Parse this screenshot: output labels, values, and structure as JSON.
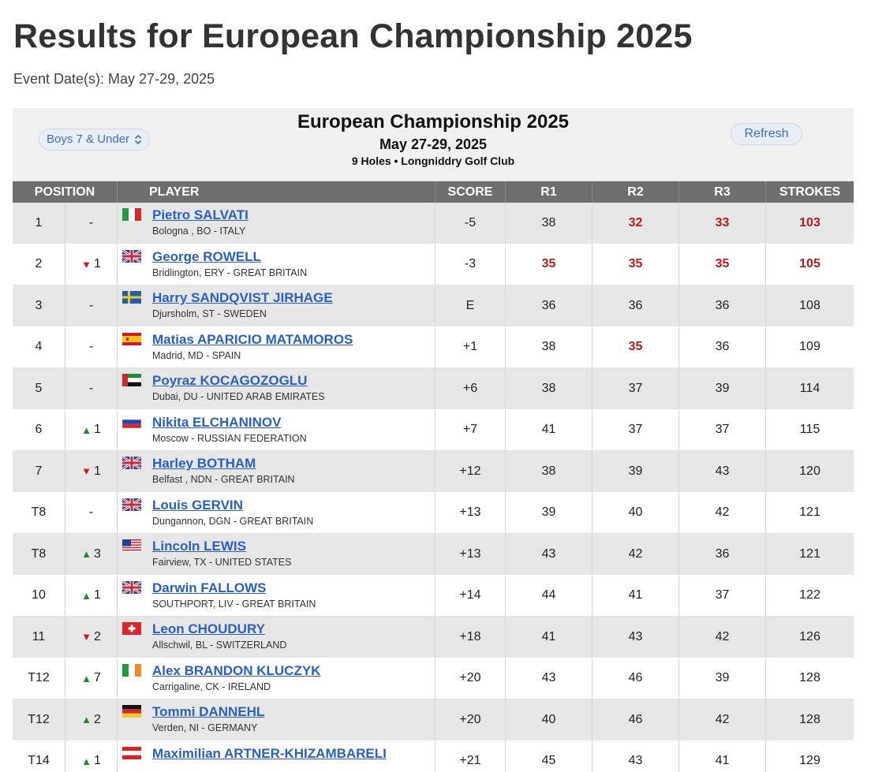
{
  "page": {
    "title": "Results for European Championship 2025",
    "event_date": "Event Date(s): May 27-29, 2025"
  },
  "board": {
    "division": "Boys 7 & Under",
    "refresh_label": "Refresh",
    "title": "European Championship 2025",
    "dates": "May 27-29, 2025",
    "course": "9 Holes • Longniddry Golf Club"
  },
  "columns": {
    "position": "POSITION",
    "player": "PLAYER",
    "score": "SCORE",
    "r1": "R1",
    "r2": "R2",
    "r3": "R3",
    "strokes": "STROKES"
  },
  "rows": [
    {
      "pos": "1",
      "move_dir": "none",
      "move": "-",
      "flag": "italy",
      "name": "Pietro SALVATI",
      "loc": "Bologna , BO - ITALY",
      "score": "-5",
      "r1": "38",
      "r2": "32",
      "r3": "33",
      "strokes": "103",
      "red": [
        "r2",
        "r3",
        "strokes"
      ]
    },
    {
      "pos": "2",
      "move_dir": "down",
      "move": "1",
      "flag": "great-britain",
      "name": "George ROWELL",
      "loc": "Bridlington, ERY - GREAT BRITAIN",
      "score": "-3",
      "r1": "35",
      "r2": "35",
      "r3": "35",
      "strokes": "105",
      "red": [
        "r1",
        "r2",
        "r3",
        "strokes"
      ]
    },
    {
      "pos": "3",
      "move_dir": "none",
      "move": "-",
      "flag": "sweden",
      "name": "Harry SANDQVIST JIRHAGE",
      "loc": "Djursholm, ST - SWEDEN",
      "score": "E",
      "r1": "36",
      "r2": "36",
      "r3": "36",
      "strokes": "108",
      "red": []
    },
    {
      "pos": "4",
      "move_dir": "none",
      "move": "-",
      "flag": "spain",
      "name": "Matias APARICIO MATAMOROS",
      "loc": "Madrid, MD - SPAIN",
      "score": "+1",
      "r1": "38",
      "r2": "35",
      "r3": "36",
      "strokes": "109",
      "red": [
        "r2"
      ]
    },
    {
      "pos": "5",
      "move_dir": "none",
      "move": "-",
      "flag": "uae",
      "name": "Poyraz KOCAGOZOGLU",
      "loc": "Dubai, DU - UNITED ARAB EMIRATES",
      "score": "+6",
      "r1": "38",
      "r2": "37",
      "r3": "39",
      "strokes": "114",
      "red": []
    },
    {
      "pos": "6",
      "move_dir": "up",
      "move": "1",
      "flag": "russia",
      "name": "Nikita ELCHANINOV",
      "loc": "Moscow - RUSSIAN FEDERATION",
      "score": "+7",
      "r1": "41",
      "r2": "37",
      "r3": "37",
      "strokes": "115",
      "red": []
    },
    {
      "pos": "7",
      "move_dir": "down",
      "move": "1",
      "flag": "great-britain",
      "name": "Harley BOTHAM",
      "loc": "Belfast , NDN - GREAT BRITAIN",
      "score": "+12",
      "r1": "38",
      "r2": "39",
      "r3": "43",
      "strokes": "120",
      "red": []
    },
    {
      "pos": "T8",
      "move_dir": "none",
      "move": "-",
      "flag": "great-britain",
      "name": "Louis GERVIN",
      "loc": "Dungannon, DGN - GREAT BRITAIN",
      "score": "+13",
      "r1": "39",
      "r2": "40",
      "r3": "42",
      "strokes": "121",
      "red": []
    },
    {
      "pos": "T8",
      "move_dir": "up",
      "move": "3",
      "flag": "united-states",
      "name": "Lincoln LEWIS",
      "loc": "Fairview, TX - UNITED STATES",
      "score": "+13",
      "r1": "43",
      "r2": "42",
      "r3": "36",
      "strokes": "121",
      "red": []
    },
    {
      "pos": "10",
      "move_dir": "up",
      "move": "1",
      "flag": "great-britain",
      "name": "Darwin FALLOWS",
      "loc": "SOUTHPORT, LIV - GREAT BRITAIN",
      "score": "+14",
      "r1": "44",
      "r2": "41",
      "r3": "37",
      "strokes": "122",
      "red": []
    },
    {
      "pos": "11",
      "move_dir": "down",
      "move": "2",
      "flag": "switzerland",
      "name": "Leon CHOUDURY",
      "loc": "Allschwil, BL - SWITZERLAND",
      "score": "+18",
      "r1": "41",
      "r2": "43",
      "r3": "42",
      "strokes": "126",
      "red": []
    },
    {
      "pos": "T12",
      "move_dir": "up",
      "move": "7",
      "flag": "ireland",
      "name": "Alex BRANDON KLUCZYK",
      "loc": "Carrigaline, CK - IRELAND",
      "score": "+20",
      "r1": "43",
      "r2": "46",
      "r3": "39",
      "strokes": "128",
      "red": []
    },
    {
      "pos": "T12",
      "move_dir": "up",
      "move": "2",
      "flag": "germany",
      "name": "Tommi DANNEHL",
      "loc": "Verden, NI - GERMANY",
      "score": "+20",
      "r1": "40",
      "r2": "46",
      "r3": "42",
      "strokes": "128",
      "red": []
    },
    {
      "pos": "T14",
      "move_dir": "up",
      "move": "1",
      "flag": "austria",
      "name": "Maximilian ARTNER-KHIZAMBARELI",
      "loc": "",
      "score": "+21",
      "r1": "45",
      "r2": "43",
      "r3": "41",
      "strokes": "129",
      "red": []
    }
  ],
  "colors": {
    "link": "#2b5fc4",
    "under_par_red": "#b41c1c",
    "header_gray": "#6e6e6e",
    "row_alt": "#e6e6e6",
    "up_green": "#1f8a2a",
    "down_red": "#c81e1e"
  }
}
